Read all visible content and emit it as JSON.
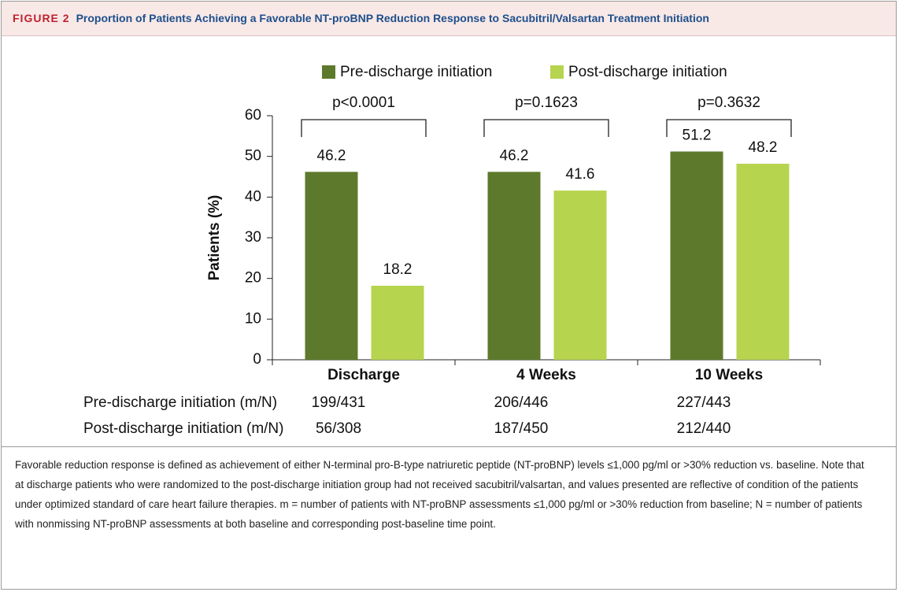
{
  "figure": {
    "label": "FIGURE 2",
    "title": "Proportion of Patients Achieving a Favorable NT-proBNP Reduction Response to Sacubitril/Valsartan Treatment Initiation"
  },
  "chart_data": {
    "type": "bar",
    "categories": [
      "Discharge",
      "4 Weeks",
      "10 Weeks"
    ],
    "series": [
      {
        "name": "Pre-discharge initiation",
        "color": "#5d7a2c",
        "values": [
          46.2,
          46.2,
          51.2
        ]
      },
      {
        "name": "Post-discharge initiation",
        "color": "#b7d44f",
        "values": [
          18.2,
          41.6,
          48.2
        ]
      }
    ],
    "y_label": "Patients (%)",
    "ylim": [
      0,
      60
    ],
    "yticks": [
      0,
      10,
      20,
      30,
      40,
      50,
      60
    ],
    "grid": false,
    "legend": "top",
    "annotations": [
      "p<0.0001",
      "p=0.1623",
      "p=0.3632"
    ]
  },
  "table": {
    "rows": [
      {
        "label": "Pre-discharge initiation (m/N)",
        "values": [
          "199/431",
          "206/446",
          "227/443"
        ]
      },
      {
        "label": "Post-discharge initiation (m/N)",
        "values": [
          "56/308",
          "187/450",
          "212/440"
        ]
      }
    ]
  },
  "caption": "Favorable reduction response is defined as achievement of either N-terminal pro-B-type natriuretic peptide (NT-proBNP) levels ≤1,000 pg/ml or >30% reduction vs. baseline. Note that at discharge patients who were randomized to the post-discharge initiation group had not received sacubitril/valsartan, and values presented are reflective of condition of the patients under optimized standard of care heart failure therapies. m = number of patients with NT-proBNP assessments ≤1,000 pg/ml or >30% reduction from baseline; N = number of patients with nonmissing NT-proBNP assessments at both baseline and corresponding post-baseline time point."
}
